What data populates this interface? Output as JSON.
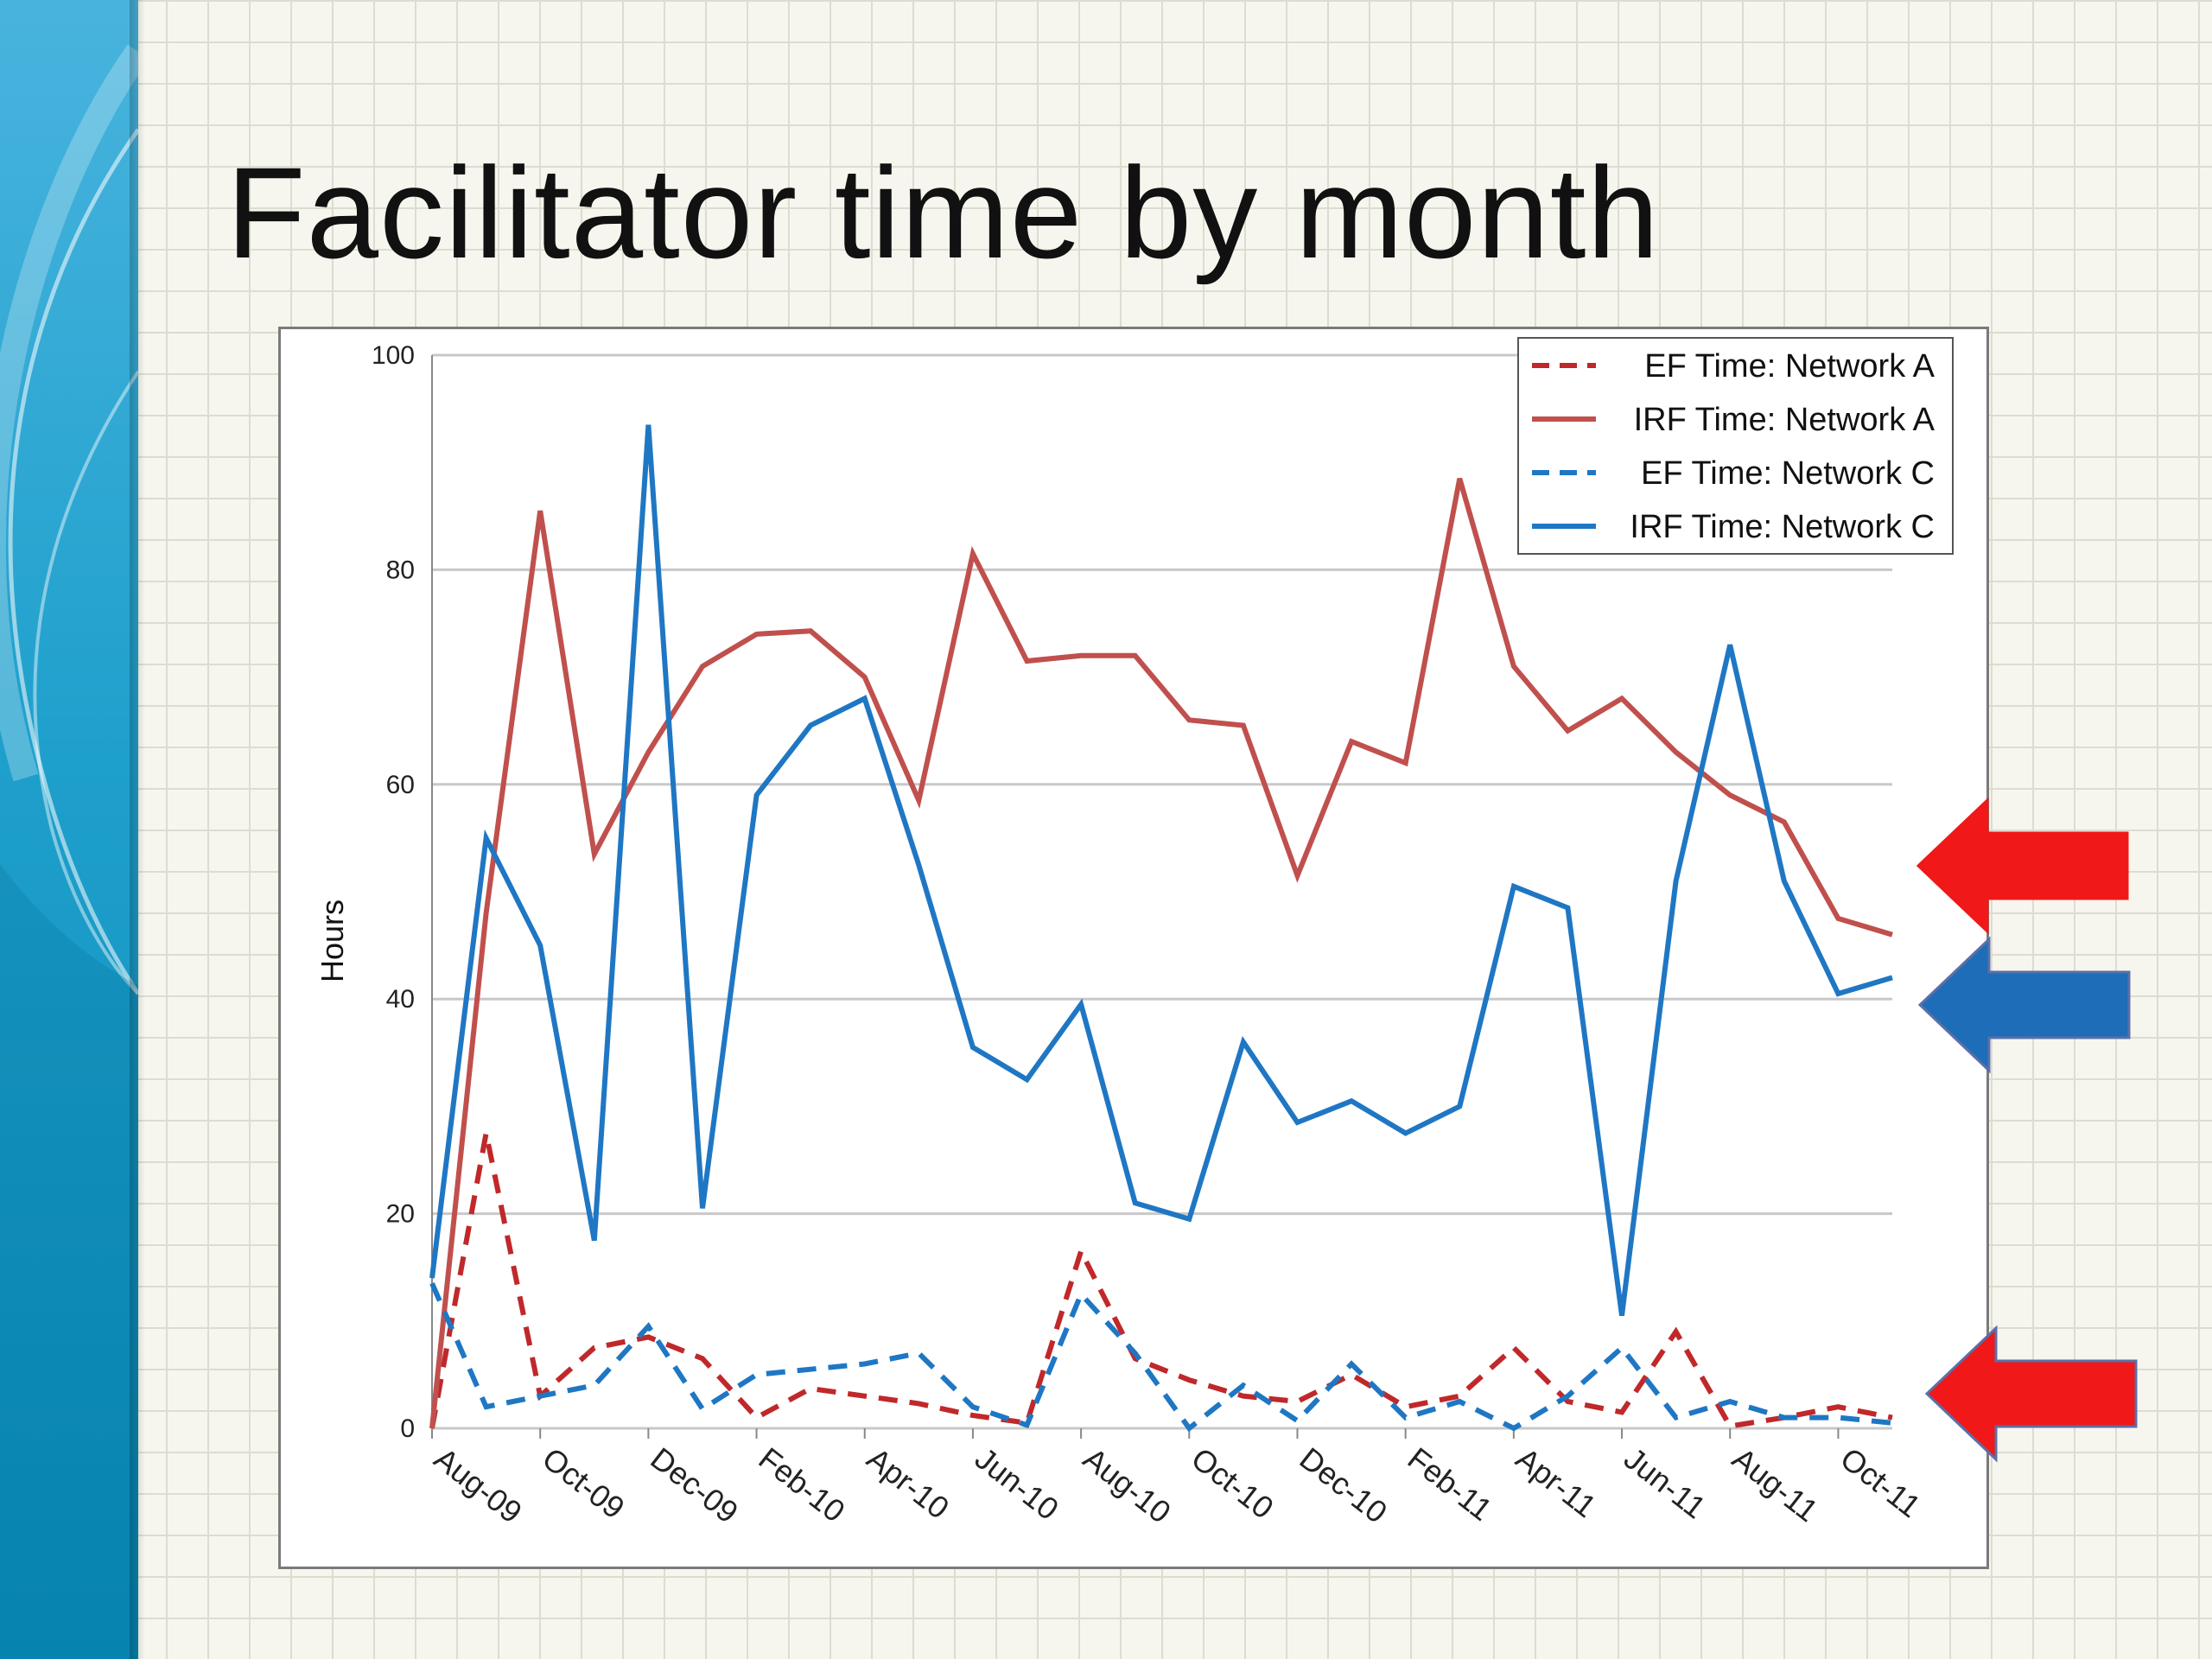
{
  "slide": {
    "title": "Facilitator time by month"
  },
  "colors": {
    "network_a": "#c0504d",
    "network_a_dash": "#c0282a",
    "network_c": "#1f77c4",
    "arrow_red": "#f01818",
    "arrow_blue": "#1e6db8",
    "arrow_border": "#5b6fa8"
  },
  "chart_data": {
    "type": "line",
    "ylabel": "Hours",
    "xlabel": "",
    "ylim": [
      0,
      100
    ],
    "yticks": [
      0,
      20,
      40,
      60,
      80,
      100
    ],
    "grid": "horizontal",
    "legend_position": "top-right",
    "x": [
      "Aug-09",
      "Sep-09",
      "Oct-09",
      "Nov-09",
      "Dec-09",
      "Jan-10",
      "Feb-10",
      "Mar-10",
      "Apr-10",
      "May-10",
      "Jun-10",
      "Jul-10",
      "Aug-10",
      "Sep-10",
      "Oct-10",
      "Nov-10",
      "Dec-10",
      "Jan-11",
      "Feb-11",
      "Mar-11",
      "Apr-11",
      "May-11",
      "Jun-11",
      "Jul-11",
      "Aug-11",
      "Sep-11",
      "Oct-11",
      "Nov-11"
    ],
    "xtick_labels": [
      "Aug-09",
      "Oct-09",
      "Dec-09",
      "Feb-10",
      "Apr-10",
      "Jun-10",
      "Aug-10",
      "Oct-10",
      "Dec-10",
      "Feb-11",
      "Apr-11",
      "Jun-11",
      "Aug-11",
      "Oct-11"
    ],
    "series": [
      {
        "name": "EF Time: Network A",
        "style": "dashed",
        "color": "#c0282a",
        "values": [
          0,
          27.5,
          3,
          7.5,
          8.5,
          6.5,
          1,
          3.7,
          3,
          2.3,
          1.2,
          0.5,
          16.5,
          6.5,
          4.5,
          3,
          2.5,
          5,
          2,
          3,
          7.5,
          2.5,
          1.5,
          9,
          0.2,
          1,
          2,
          1
        ]
      },
      {
        "name": "IRF Time: Network A",
        "style": "solid",
        "color": "#c0504d",
        "values": [
          0,
          48,
          85.5,
          53.5,
          63,
          71,
          74,
          74.3,
          70,
          58.5,
          81.5,
          71.5,
          72,
          72,
          66,
          65.5,
          51.5,
          64,
          62,
          88.5,
          71,
          65,
          68,
          63,
          59,
          56.5,
          47.5,
          46
        ]
      },
      {
        "name": "EF Time: Network C",
        "style": "dashed",
        "color": "#1f77c4",
        "values": [
          13.5,
          2,
          3,
          4,
          9.5,
          1.8,
          5,
          5.5,
          6,
          7,
          2,
          0.3,
          12.5,
          7,
          0,
          4,
          0.7,
          6,
          1,
          2.5,
          0,
          3,
          7.5,
          1,
          2.5,
          1,
          1,
          0.5
        ]
      },
      {
        "name": "IRF Time: Network C",
        "style": "solid",
        "color": "#1f77c4",
        "values": [
          14,
          55,
          45,
          17.5,
          93.5,
          20.5,
          59,
          65.5,
          68,
          52.5,
          35.5,
          32.5,
          39.5,
          21,
          19.5,
          36,
          28.5,
          30.5,
          27.5,
          30,
          50.5,
          48.5,
          10.5,
          51,
          73,
          51,
          40.5,
          42
        ]
      }
    ]
  }
}
